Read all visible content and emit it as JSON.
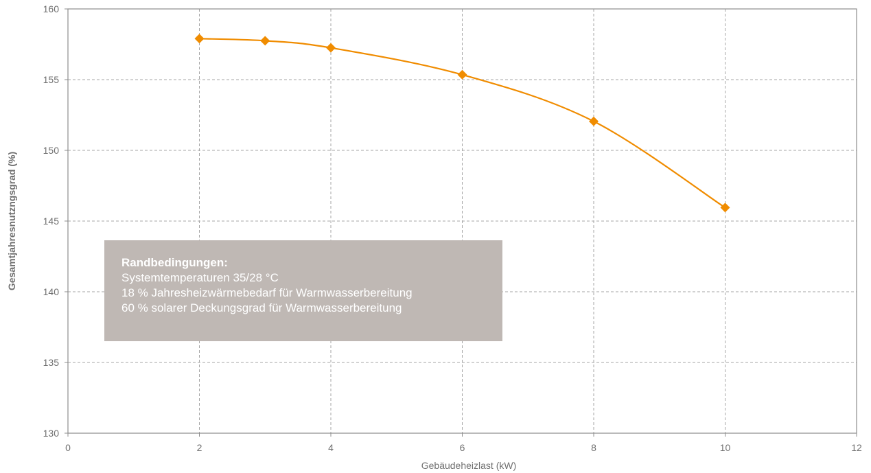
{
  "chart_data": {
    "type": "line",
    "title": "",
    "xlabel": "Gebäudeheizlast (kW)",
    "ylabel": "Gesamtjahresnutzngsgrad (%)",
    "xlim": [
      0,
      12
    ],
    "ylim": [
      130,
      160
    ],
    "x_ticks": [
      "0",
      "2",
      "4",
      "6",
      "8",
      "10",
      "12"
    ],
    "y_ticks": [
      "130",
      "135",
      "140",
      "145",
      "150",
      "155",
      "160"
    ],
    "grid": true,
    "series": [
      {
        "x": [
          2,
          3,
          4,
          6,
          8,
          10
        ],
        "y": [
          157.9,
          157.75,
          157.25,
          155.35,
          152.05,
          145.95
        ],
        "color": "#f08c00",
        "marker": "diamond",
        "smooth": true
      }
    ],
    "annotation": {
      "title": "Randbedingungen:",
      "lines": [
        "Systemtemperaturen 35/28 °C",
        "18 % Jahresheizwärmebedarf für Warmwasserbereitung",
        "60 % solarer Deckungsgrad für Warmwasserbereitung"
      ]
    },
    "colors": {
      "axis": "#8c8c8c",
      "grid": "#a6a6a6",
      "annotation_bg": "#bfb8b4"
    }
  }
}
